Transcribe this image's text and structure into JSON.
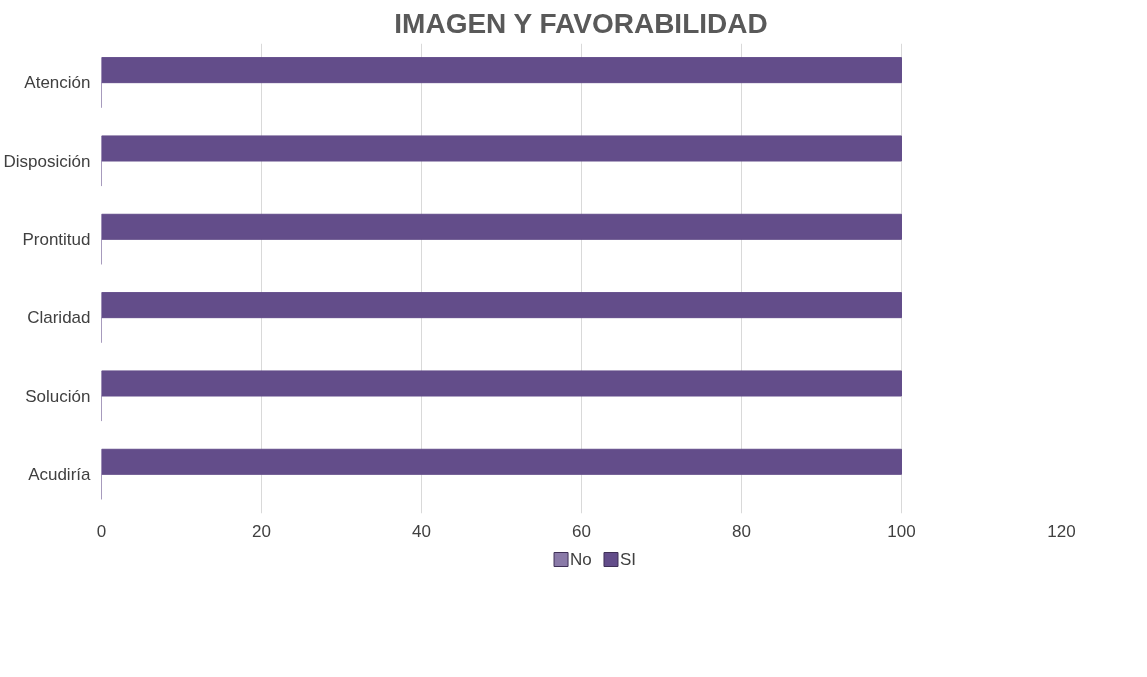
{
  "chart_data": {
    "type": "bar",
    "orientation": "horizontal",
    "title": "IMAGEN Y FAVORABILIDAD",
    "categories": [
      "Atención",
      "Disposición",
      "Prontitud",
      "Claridad",
      "Solución",
      "Acudiría"
    ],
    "series": [
      {
        "name": "No",
        "color": "#8a7aa8",
        "values": [
          0,
          0,
          0,
          0,
          0,
          0
        ]
      },
      {
        "name": "SI",
        "color": "#634d8a",
        "values": [
          100,
          100,
          100,
          100,
          100,
          100
        ]
      }
    ],
    "xlim": [
      0,
      120
    ],
    "xticks": [
      0,
      20,
      40,
      60,
      80,
      100,
      120
    ],
    "grid": "x",
    "legend": "bottom"
  }
}
